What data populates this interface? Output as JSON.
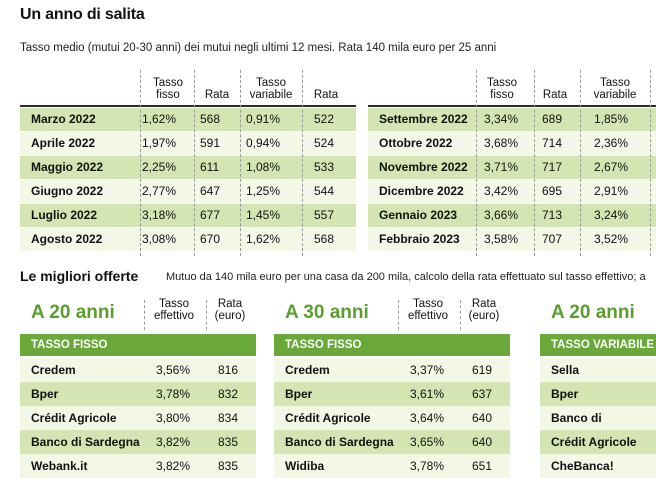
{
  "title": "Un anno di salita",
  "subtitle": "Tasso medio (mutui 20-30 anni) dei mutui negli ultimi 12 mesi. Rata 140 mila euro per 25 anni",
  "top_headers": [
    "Tasso fisso",
    "Rata",
    "Tasso variabile",
    "Rata"
  ],
  "left_table": [
    {
      "month": "Marzo 2022",
      "fisso": "1,62%",
      "rata_f": "568",
      "variabile": "0,91%",
      "rata_v": "522"
    },
    {
      "month": "Aprile 2022",
      "fisso": "1,97%",
      "rata_f": "591",
      "variabile": "0,94%",
      "rata_v": "524"
    },
    {
      "month": "Maggio 2022",
      "fisso": "2,25%",
      "rata_f": "611",
      "variabile": "1,08%",
      "rata_v": "533"
    },
    {
      "month": "Giugno 2022",
      "fisso": "2,77%",
      "rata_f": "647",
      "variabile": "1,25%",
      "rata_v": "544"
    },
    {
      "month": "Luglio 2022",
      "fisso": "3,18%",
      "rata_f": "677",
      "variabile": "1,45%",
      "rata_v": "557"
    },
    {
      "month": "Agosto 2022",
      "fisso": "3,08%",
      "rata_f": "670",
      "variabile": "1,62%",
      "rata_v": "568"
    }
  ],
  "right_table": [
    {
      "month": "Settembre 2022",
      "fisso": "3,34%",
      "rata_f": "689",
      "variabile": "1,85%"
    },
    {
      "month": "Ottobre 2022",
      "fisso": "3,68%",
      "rata_f": "714",
      "variabile": "2,36%"
    },
    {
      "month": "Novembre 2022",
      "fisso": "3,71%",
      "rata_f": "717",
      "variabile": "2,67%"
    },
    {
      "month": "Dicembre 2022",
      "fisso": "3,42%",
      "rata_f": "695",
      "variabile": "2,91%"
    },
    {
      "month": "Gennaio 2023",
      "fisso": "3,66%",
      "rata_f": "713",
      "variabile": "3,24%"
    },
    {
      "month": "Febbraio 2023",
      "fisso": "3,58%",
      "rata_f": "707",
      "variabile": "3,52%"
    }
  ],
  "offers_title": "Le migliori offerte",
  "offers_sub": "Mutuo da 140 mila euro per una casa da 200 mila, calcolo della rata effettuato sul tasso effettivo; a",
  "offer_headers": {
    "tasso": "Tasso effettivo",
    "rata": "Rata (euro)"
  },
  "offers": [
    {
      "heading": "A 20 anni",
      "band": "TASSO FISSO",
      "rows": [
        {
          "bank": "Credem",
          "tasso": "3,56%",
          "rata": "816"
        },
        {
          "bank": "Bper",
          "tasso": "3,78%",
          "rata": "832"
        },
        {
          "bank": "Crédit Agricole",
          "tasso": "3,80%",
          "rata": "834"
        },
        {
          "bank": "Banco di Sardegna",
          "tasso": "3,82%",
          "rata": "835"
        },
        {
          "bank": "Webank.it",
          "tasso": "3,82%",
          "rata": "835"
        }
      ]
    },
    {
      "heading": "A 30 anni",
      "band": "TASSO FISSO",
      "rows": [
        {
          "bank": "Credem",
          "tasso": "3,37%",
          "rata": "619"
        },
        {
          "bank": "Bper",
          "tasso": "3,61%",
          "rata": "637"
        },
        {
          "bank": "Crédit Agricole",
          "tasso": "3,64%",
          "rata": "640"
        },
        {
          "bank": "Banco di Sardegna",
          "tasso": "3,65%",
          "rata": "640"
        },
        {
          "bank": "Widiba",
          "tasso": "3,78%",
          "rata": "651"
        }
      ]
    },
    {
      "heading": "A 20 anni",
      "band": "TASSO VARIABILE",
      "rows": [
        {
          "bank": "Sella"
        },
        {
          "bank": "Bper"
        },
        {
          "bank": "Banco di Sardegna"
        },
        {
          "bank": "Crédit Agricole"
        },
        {
          "bank": "CheBanca!"
        }
      ]
    }
  ]
}
